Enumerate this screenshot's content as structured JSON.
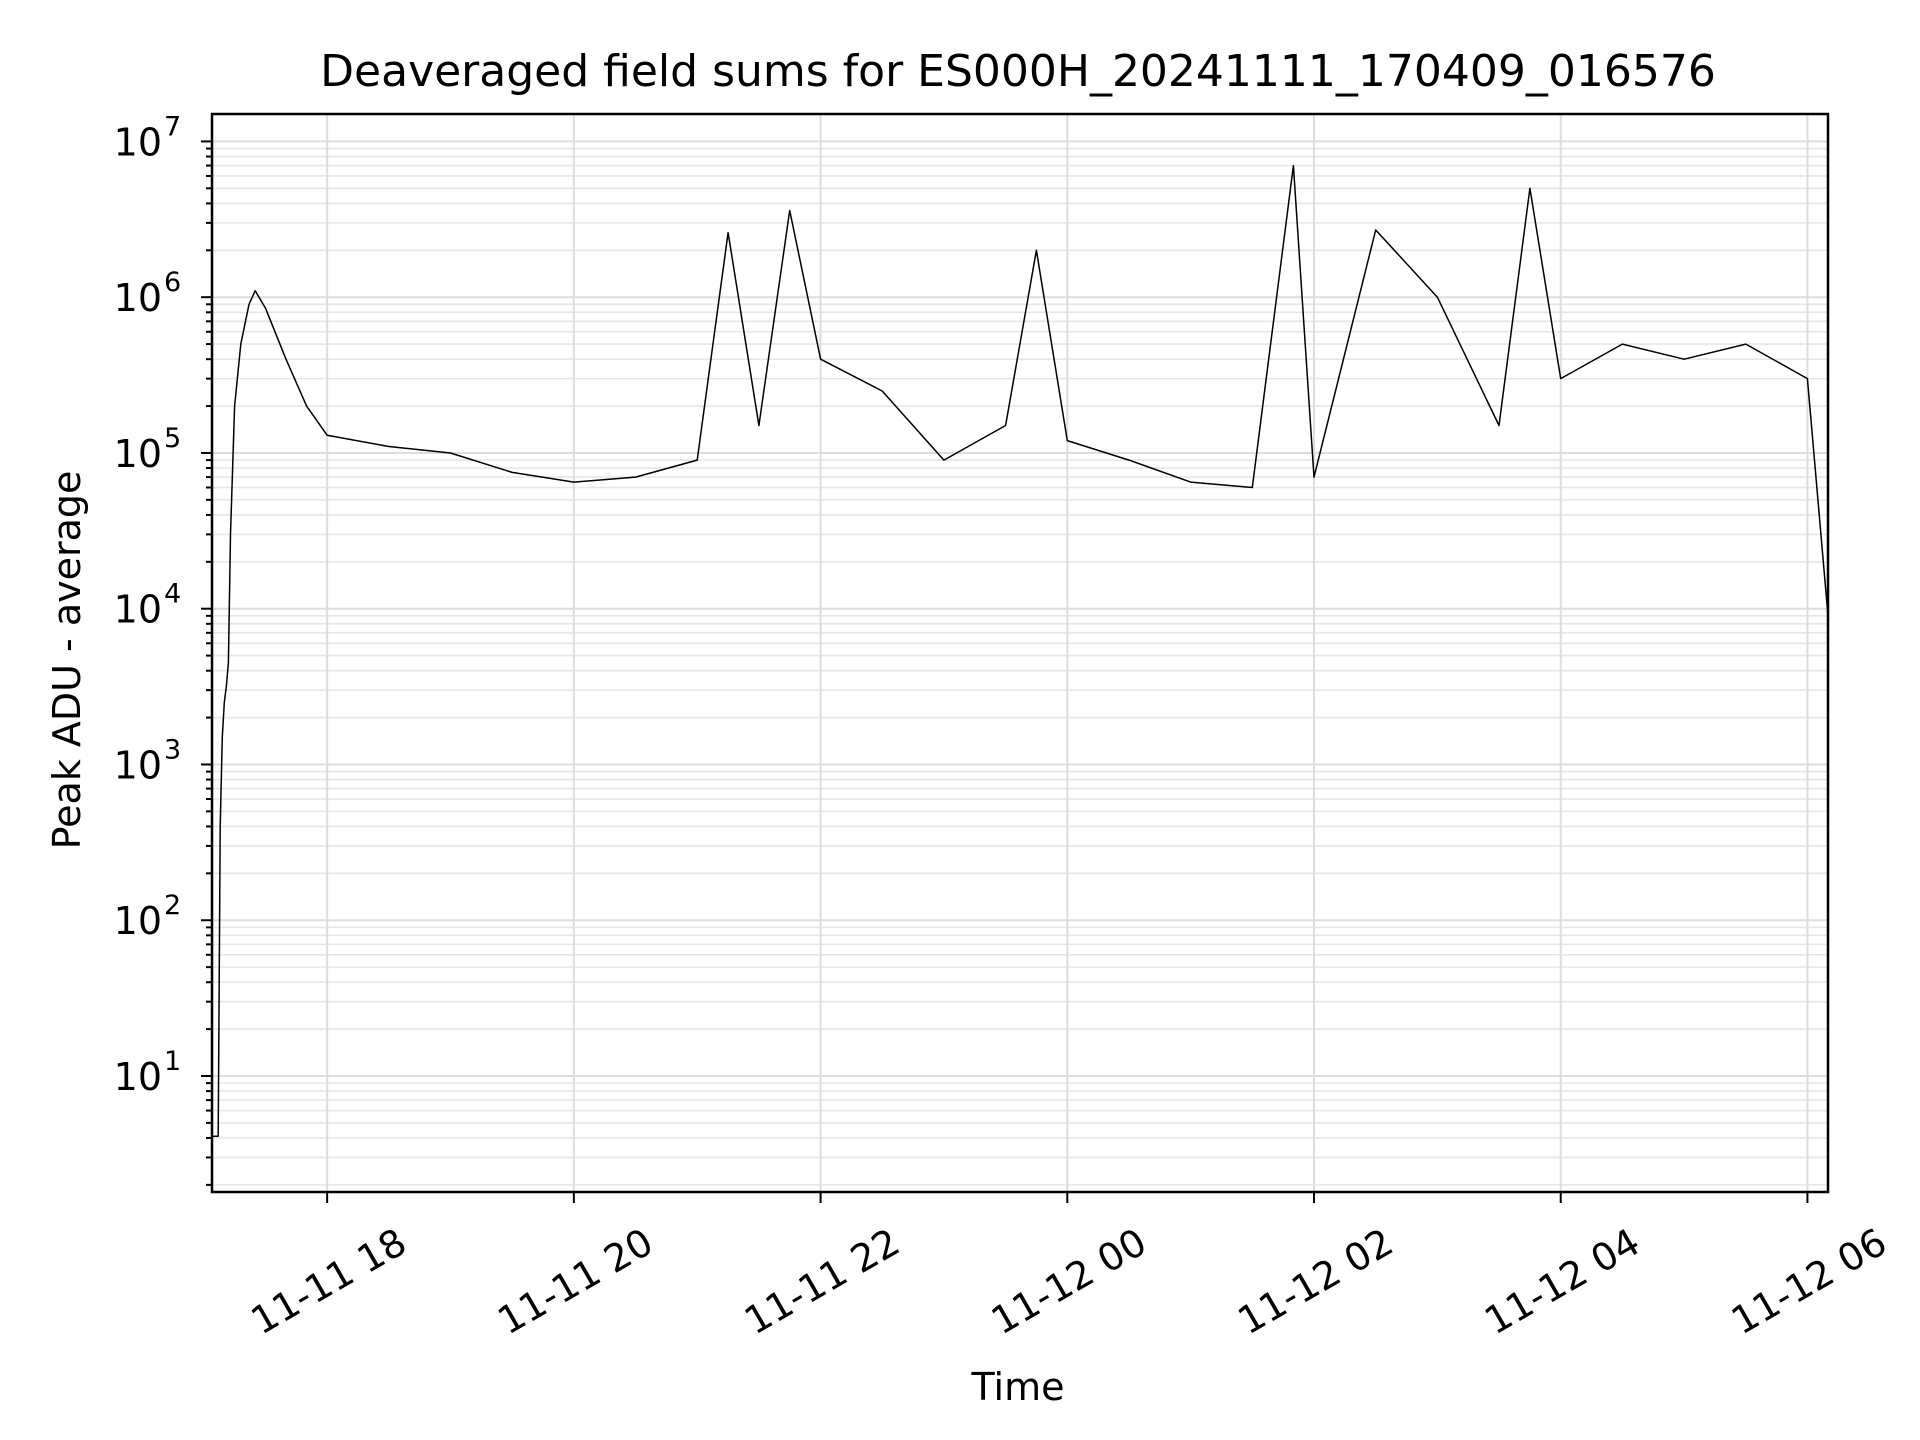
{
  "chart_data": {
    "type": "line",
    "title": "Deaveraged field sums for ES000H_20241111_170409_016576",
    "xlabel": "Time",
    "ylabel": "Peak ADU - average",
    "yscale": "log",
    "x_unit": "datetime",
    "xlim": [
      "2024-11-11 17:04",
      "2024-11-12 06:10"
    ],
    "ylim": [
      1.8,
      15000000
    ],
    "x_ticks": [
      {
        "value": "2024-11-11 18:00",
        "label": "11-11 18"
      },
      {
        "value": "2024-11-11 20:00",
        "label": "11-11 20"
      },
      {
        "value": "2024-11-11 22:00",
        "label": "11-11 22"
      },
      {
        "value": "2024-11-12 00:00",
        "label": "11-12 00"
      },
      {
        "value": "2024-11-12 02:00",
        "label": "11-12 02"
      },
      {
        "value": "2024-11-12 04:00",
        "label": "11-12 04"
      },
      {
        "value": "2024-11-12 06:00",
        "label": "11-12 06"
      }
    ],
    "y_ticks": [
      {
        "value": 10,
        "base": "10",
        "exp": "1"
      },
      {
        "value": 100,
        "base": "10",
        "exp": "2"
      },
      {
        "value": 1000,
        "base": "10",
        "exp": "3"
      },
      {
        "value": 10000,
        "base": "10",
        "exp": "4"
      },
      {
        "value": 100000,
        "base": "10",
        "exp": "5"
      },
      {
        "value": 1000000,
        "base": "10",
        "exp": "6"
      },
      {
        "value": 10000000,
        "base": "10",
        "exp": "7"
      }
    ],
    "grid": true,
    "series": [
      {
        "color": "#000000",
        "points": [
          [
            "2024-11-11 17:04",
            4.1
          ],
          [
            "2024-11-11 17:07",
            4.1
          ],
          [
            "2024-11-11 17:08",
            400
          ],
          [
            "2024-11-11 17:09",
            1500
          ],
          [
            "2024-11-11 17:10",
            2500
          ],
          [
            "2024-11-11 17:11",
            3200
          ],
          [
            "2024-11-11 17:12",
            4500
          ],
          [
            "2024-11-11 17:13",
            30000
          ],
          [
            "2024-11-11 17:15",
            200000
          ],
          [
            "2024-11-11 17:18",
            500000
          ],
          [
            "2024-11-11 17:22",
            900000
          ],
          [
            "2024-11-11 17:25",
            1100000
          ],
          [
            "2024-11-11 17:30",
            850000
          ],
          [
            "2024-11-11 17:40",
            400000
          ],
          [
            "2024-11-11 17:50",
            200000
          ],
          [
            "2024-11-11 18:00",
            130000
          ],
          [
            "2024-11-11 18:30",
            110000
          ],
          [
            "2024-11-11 19:00",
            100000
          ],
          [
            "2024-11-11 19:30",
            75000
          ],
          [
            "2024-11-11 20:00",
            65000
          ],
          [
            "2024-11-11 20:30",
            70000
          ],
          [
            "2024-11-11 21:00",
            90000
          ],
          [
            "2024-11-11 21:15",
            2600000
          ],
          [
            "2024-11-11 21:30",
            150000
          ],
          [
            "2024-11-11 21:45",
            3600000
          ],
          [
            "2024-11-11 22:00",
            400000
          ],
          [
            "2024-11-11 22:30",
            250000
          ],
          [
            "2024-11-11 23:00",
            90000
          ],
          [
            "2024-11-11 23:30",
            150000
          ],
          [
            "2024-11-11 23:45",
            2000000
          ],
          [
            "2024-11-12 00:00",
            120000
          ],
          [
            "2024-11-12 00:30",
            90000
          ],
          [
            "2024-11-12 01:00",
            65000
          ],
          [
            "2024-11-12 01:30",
            60000
          ],
          [
            "2024-11-12 01:50",
            7000000
          ],
          [
            "2024-11-12 02:00",
            70000
          ],
          [
            "2024-11-12 02:30",
            2700000
          ],
          [
            "2024-11-12 03:00",
            1000000
          ],
          [
            "2024-11-12 03:30",
            150000
          ],
          [
            "2024-11-12 03:45",
            5000000
          ],
          [
            "2024-11-12 04:00",
            300000
          ],
          [
            "2024-11-12 04:30",
            500000
          ],
          [
            "2024-11-12 05:00",
            400000
          ],
          [
            "2024-11-12 05:30",
            500000
          ],
          [
            "2024-11-12 06:00",
            300000
          ],
          [
            "2024-11-12 06:10",
            9000
          ]
        ]
      }
    ]
  }
}
